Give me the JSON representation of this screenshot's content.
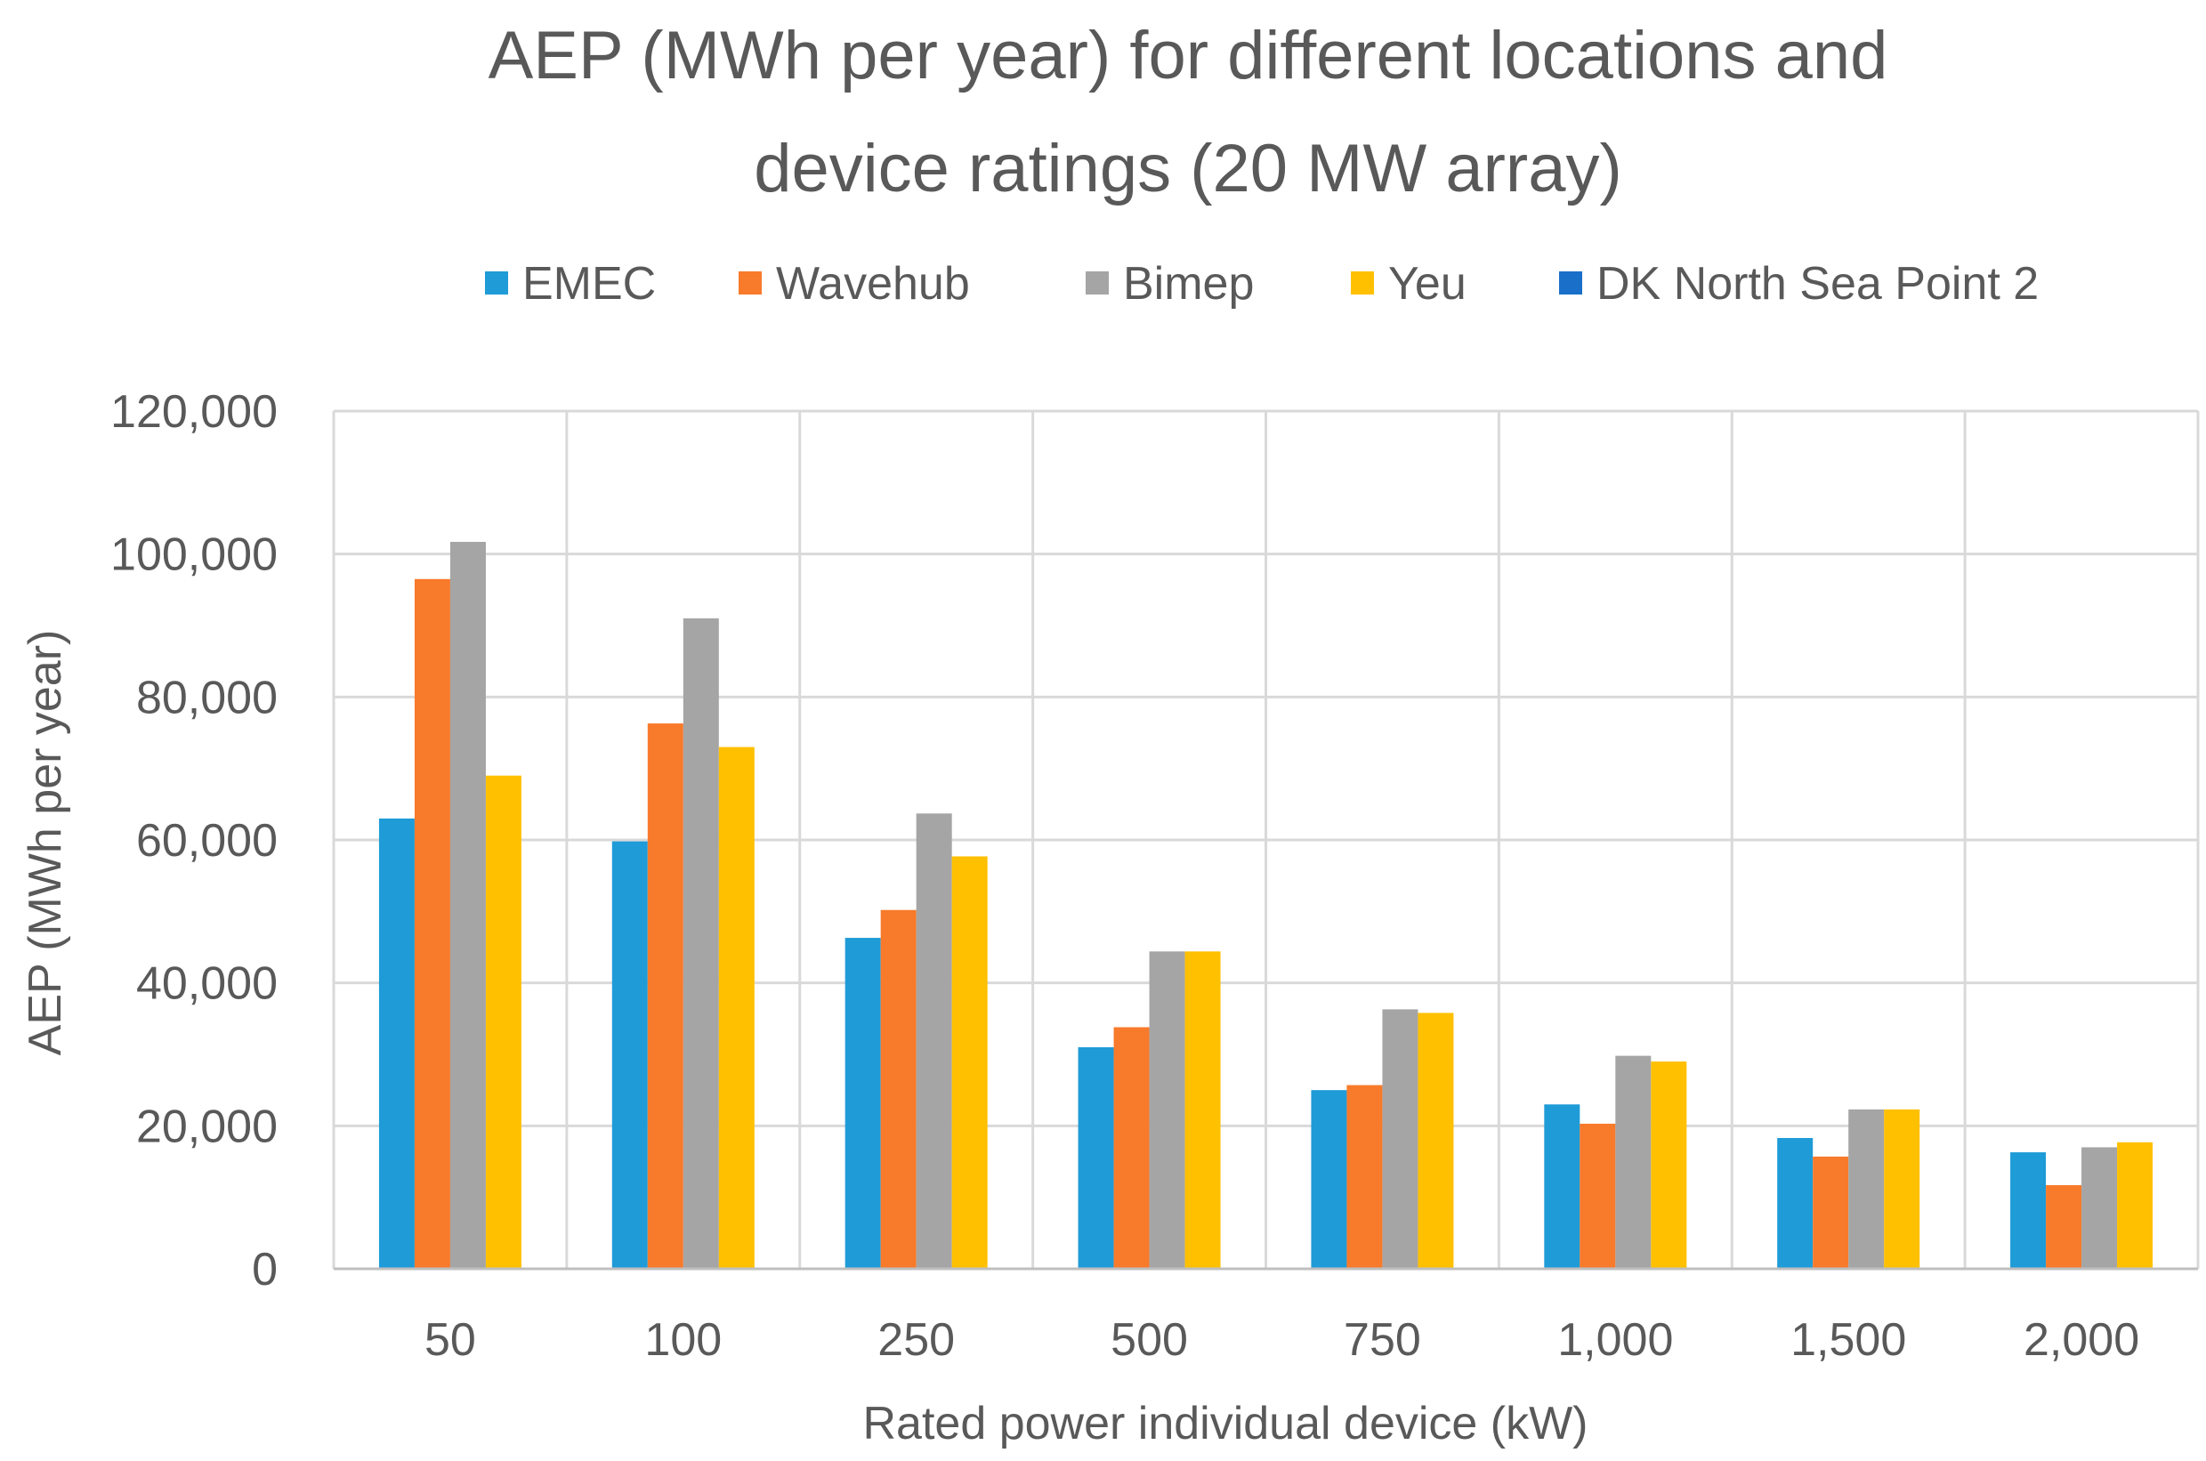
{
  "chart_data": {
    "type": "bar",
    "title_lines": [
      "AEP (MWh per year)  for different locations and",
      "device ratings (20 MW array)"
    ],
    "xlabel": "Rated power  individual device (kW)",
    "ylabel": "AEP (MWh per year)",
    "ylim": [
      0,
      120000
    ],
    "yticks": [
      "0",
      "20,000",
      "40,000",
      "60,000",
      "80,000",
      "100,000",
      "120,000"
    ],
    "ytick_values": [
      0,
      20000,
      40000,
      60000,
      80000,
      100000,
      120000
    ],
    "categories": [
      "50",
      "100",
      "250",
      "500",
      "750",
      "1,000",
      "1,500",
      "2,000"
    ],
    "grid": true,
    "legend_position": "top",
    "series": [
      {
        "name": "EMEC",
        "color": "#1f9bd7",
        "values": [
          63000,
          59800,
          46300,
          31000,
          25000,
          23000,
          18300,
          16300
        ]
      },
      {
        "name": "Wavehub",
        "color": "#f87a2b",
        "values": [
          96500,
          76300,
          50200,
          33800,
          25700,
          20300,
          15700,
          11700
        ]
      },
      {
        "name": "Bimep",
        "color": "#a5a5a5",
        "values": [
          101700,
          91000,
          63700,
          44400,
          36300,
          29800,
          22300,
          17000
        ]
      },
      {
        "name": "Yeu",
        "color": "#ffc000",
        "values": [
          69000,
          73000,
          57700,
          44400,
          35800,
          29000,
          22300,
          17700
        ]
      },
      {
        "name": "DK North Sea Point 2",
        "color": "#1a6fc9",
        "values": [
          null,
          null,
          null,
          null,
          null,
          null,
          null,
          null
        ]
      }
    ]
  }
}
